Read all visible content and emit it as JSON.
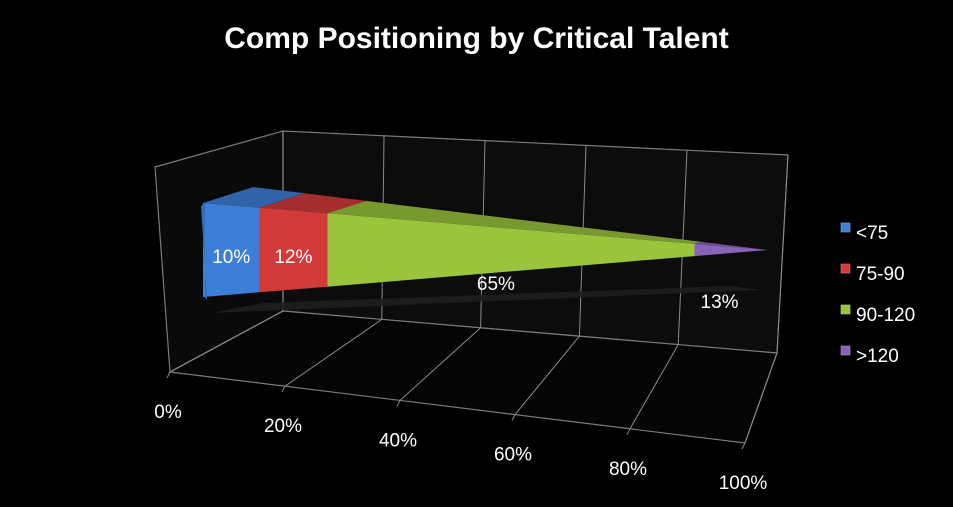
{
  "chart_data": {
    "type": "bar",
    "title": "Comp Positioning by Critical Talent",
    "xlabel": "",
    "ylabel": "",
    "xlim": [
      0,
      100
    ],
    "x_ticks": [
      "0%",
      "20%",
      "40%",
      "60%",
      "80%",
      "100%"
    ],
    "legend_position": "right",
    "series": [
      {
        "name": "<75",
        "value": 10,
        "label": "10%",
        "color": "#3d7fd6"
      },
      {
        "name": "75-90",
        "value": 12,
        "label": "12%",
        "color": "#d23a3a"
      },
      {
        "name": "90-120",
        "value": 65,
        "label": "65%",
        "color": "#9ac43c"
      },
      {
        "name": ">120",
        "value": 13,
        "label": "13%",
        "color": "#8a62b8"
      }
    ]
  }
}
